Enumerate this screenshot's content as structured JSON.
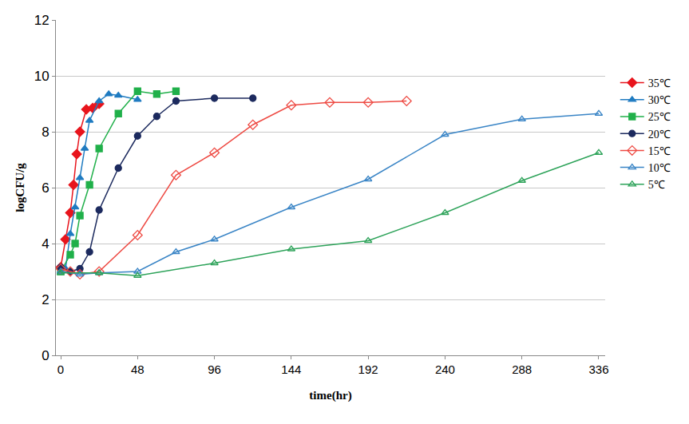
{
  "chart_data": {
    "type": "line",
    "x_label": "time(hr)",
    "y_label": "logCFU/g",
    "xlim": [
      -3,
      340
    ],
    "xticks": [
      0,
      48,
      96,
      144,
      192,
      240,
      288,
      336
    ],
    "ylim": [
      0,
      12
    ],
    "yticks": [
      0,
      2,
      4,
      6,
      8,
      10,
      12
    ],
    "grid": true,
    "legend": "right",
    "series": [
      {
        "name": "35℃",
        "color": "#e8141c",
        "marker": "diamond",
        "line_style": "solid",
        "x": [
          0,
          3,
          6,
          8,
          10,
          12,
          16,
          20,
          24
        ],
        "values": [
          3.15,
          4.15,
          5.1,
          6.1,
          7.2,
          8.0,
          8.8,
          8.85,
          9.0
        ]
      },
      {
        "name": "30℃",
        "color": "#1f7bc1",
        "marker": "triangle-up",
        "line_style": "solid",
        "x": [
          0,
          3,
          6,
          9,
          12,
          15,
          18,
          24,
          30,
          36,
          48
        ],
        "values": [
          3.0,
          3.1,
          4.35,
          5.3,
          6.35,
          7.4,
          8.4,
          9.1,
          9.35,
          9.3,
          9.15
        ]
      },
      {
        "name": "25℃",
        "color": "#20b04a",
        "marker": "square",
        "line_style": "solid",
        "x": [
          0,
          6,
          9,
          12,
          18,
          24,
          36,
          48,
          60,
          72
        ],
        "values": [
          3.0,
          3.6,
          4.0,
          5.0,
          6.1,
          7.4,
          8.65,
          9.45,
          9.35,
          9.45
        ]
      },
      {
        "name": "20℃",
        "color": "#1c2a5e",
        "marker": "circle",
        "line_style": "solid",
        "x": [
          0,
          6,
          12,
          18,
          24,
          36,
          48,
          60,
          72,
          96,
          120
        ],
        "values": [
          3.15,
          3.0,
          3.1,
          3.7,
          5.2,
          6.7,
          7.85,
          8.55,
          9.1,
          9.2,
          9.2
        ]
      },
      {
        "name": "15℃",
        "color": "#ee4a43",
        "marker": "diamond-open",
        "line_style": "solid",
        "x": [
          0,
          6,
          12,
          24,
          48,
          72,
          96,
          120,
          144,
          168,
          192,
          216
        ],
        "values": [
          3.1,
          3.0,
          2.9,
          3.0,
          4.3,
          6.45,
          7.25,
          8.25,
          8.95,
          9.05,
          9.05,
          9.1
        ]
      },
      {
        "name": "10℃",
        "color": "#3a85c6",
        "marker": "triangle-up-open",
        "line_style": "solid",
        "x": [
          0,
          12,
          24,
          48,
          72,
          96,
          144,
          192,
          240,
          288,
          336
        ],
        "values": [
          3.0,
          2.9,
          2.95,
          3.0,
          3.7,
          4.15,
          5.3,
          6.3,
          7.9,
          8.45,
          8.65
        ]
      },
      {
        "name": "5℃",
        "color": "#2ea35a",
        "marker": "triangle-up-open",
        "line_style": "solid",
        "x": [
          0,
          24,
          48,
          96,
          144,
          192,
          240,
          288,
          336
        ],
        "values": [
          2.95,
          2.95,
          2.85,
          3.3,
          3.8,
          4.1,
          5.1,
          6.25,
          7.25
        ]
      }
    ]
  }
}
